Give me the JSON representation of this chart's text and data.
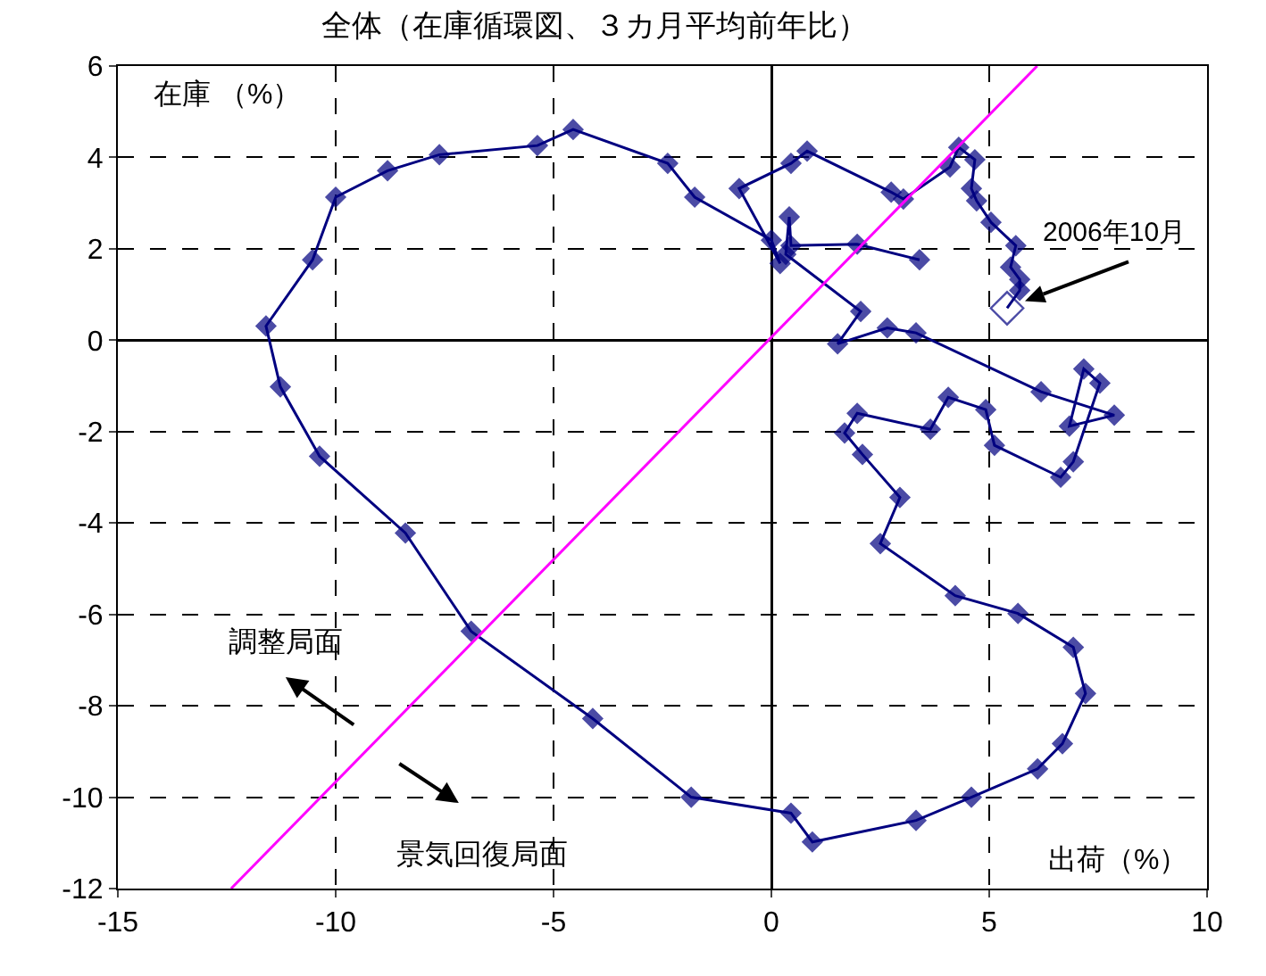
{
  "chart_data": {
    "type": "line",
    "title": "全体（在庫循環図、３カ月平均前年比）",
    "xlabel": "出荷（%）",
    "ylabel": "在庫 （%）",
    "annotations": [
      {
        "text": "2006年10月",
        "x": 5.41,
        "y": 0.7
      },
      "調整局面",
      "景気回復局面"
    ],
    "xlim": [
      -15,
      10
    ],
    "xticks": [
      -15,
      -10,
      -5,
      0,
      5,
      10
    ],
    "ylim": [
      -12,
      6
    ],
    "yticks": [
      -12,
      -10,
      -8,
      -6,
      -4,
      -2,
      0,
      2,
      4,
      6
    ],
    "grid": true,
    "marker": "diamond",
    "line_style": "solid",
    "series": [
      {
        "color": "#000080",
        "x": [
          3.4,
          1.97,
          0.45,
          0.41,
          0.33,
          2.05,
          1.52,
          2.66,
          3.32,
          6.19,
          7.87,
          6.84,
          7.17,
          7.54,
          6.93,
          6.64,
          5.12,
          4.92,
          4.06,
          3.65,
          1.97,
          1.68,
          2.09,
          2.95,
          2.5,
          4.22,
          5.66,
          6.93,
          7.21,
          6.68,
          6.11,
          4.59,
          3.32,
          0.94,
          0.45,
          -1.84,
          -4.1,
          -6.89,
          -8.4,
          -10.37,
          -11.27,
          -11.6,
          -10.53,
          -10.0,
          -8.81,
          -7.62,
          -5.37,
          -4.55,
          -2.38,
          -1.76,
          0,
          0.2,
          -0.74,
          0.45,
          0.82,
          2.75,
          3.03,
          4.1,
          4.3,
          4.67,
          4.59,
          4.71,
          5.04,
          5.61,
          5.49,
          5.7,
          5.7,
          5.41
        ],
        "values": [
          1.76,
          2.1,
          2.07,
          2.7,
          1.88,
          0.63,
          -0.08,
          0.27,
          0.16,
          -1.13,
          -1.64,
          -1.88,
          -0.63,
          -0.94,
          -2.66,
          -3.0,
          -2.3,
          -1.52,
          -1.25,
          -1.95,
          -1.6,
          -2.03,
          -2.5,
          -3.44,
          -4.45,
          -5.59,
          -5.98,
          -6.72,
          -7.73,
          -8.83,
          -9.38,
          -10.0,
          -10.51,
          -10.98,
          -10.35,
          -10.0,
          -8.28,
          -6.37,
          -4.22,
          -2.54,
          -1.02,
          0.31,
          1.76,
          3.13,
          3.71,
          4.06,
          4.26,
          4.61,
          3.87,
          3.13,
          2.19,
          1.68,
          3.32,
          3.87,
          4.14,
          3.24,
          3.09,
          3.79,
          4.22,
          3.95,
          3.32,
          3.05,
          2.58,
          2.07,
          1.6,
          1.33,
          1.09,
          0.7
        ]
      },
      {
        "color": "#ff00ff",
        "marker": "none",
        "x": [
          -12.4,
          6.1
        ],
        "values": [
          -12,
          6
        ]
      }
    ]
  }
}
